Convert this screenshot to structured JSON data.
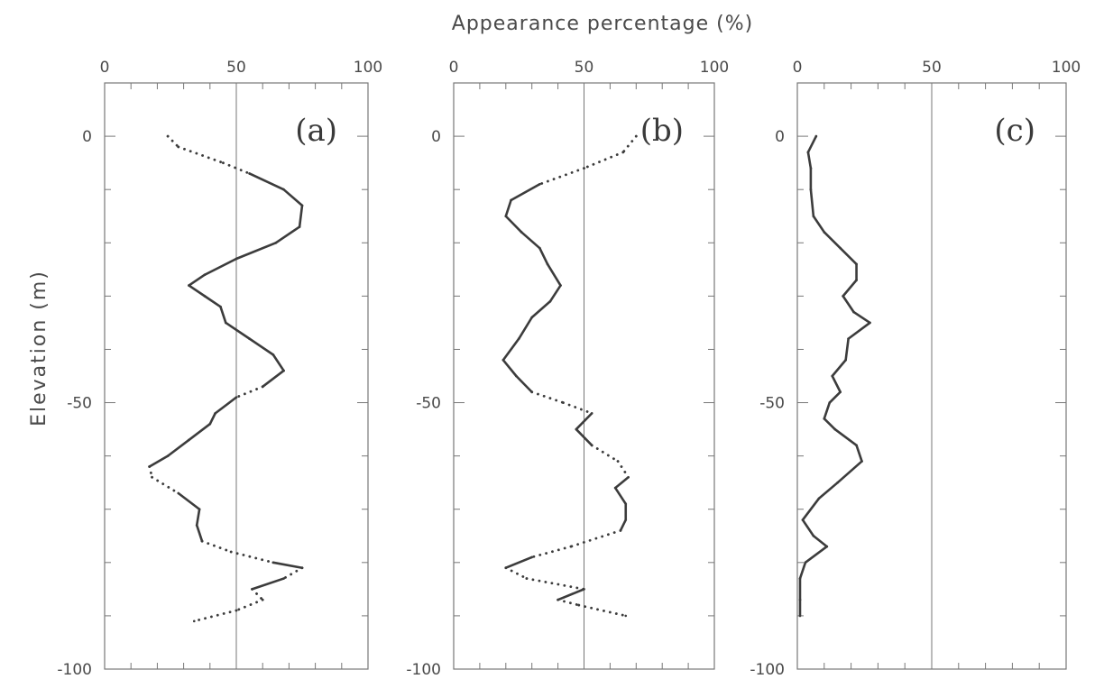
{
  "figure": {
    "top_label": "Appearance percentage (%)",
    "side_label": "Elevation (m)"
  },
  "colors": {
    "ink": "#3c3c3c",
    "frame": "#777777",
    "background": "#ffffff"
  },
  "chart_data": [
    {
      "type": "line",
      "panel_label": "(a)",
      "xlabel": "Appearance percentage (%)",
      "ylabel": "Elevation (m)",
      "xlim": [
        0,
        100
      ],
      "ylim": [
        -100,
        10
      ],
      "xticks": [
        0,
        50,
        100
      ],
      "yticks": [
        0,
        -50,
        -100
      ],
      "xtick_labels": [
        "0",
        "50",
        "100"
      ],
      "ytick_labels": [
        "0",
        "-50",
        "-100"
      ],
      "reference_line_x": 50,
      "series": [
        {
          "points": [
            {
              "y": 0,
              "x": 24,
              "style": "solid"
            },
            {
              "y": -2,
              "x": 28,
              "style": "dotted"
            },
            {
              "y": -5,
              "x": 45,
              "style": "dotted"
            },
            {
              "y": -7,
              "x": 55,
              "style": "dotted"
            },
            {
              "y": -10,
              "x": 68,
              "style": "solid"
            },
            {
              "y": -13,
              "x": 75,
              "style": "solid"
            },
            {
              "y": -17,
              "x": 74,
              "style": "solid"
            },
            {
              "y": -20,
              "x": 65,
              "style": "solid"
            },
            {
              "y": -23,
              "x": 50,
              "style": "solid"
            },
            {
              "y": -26,
              "x": 38,
              "style": "solid"
            },
            {
              "y": -28,
              "x": 32,
              "style": "solid"
            },
            {
              "y": -30,
              "x": 38,
              "style": "solid"
            },
            {
              "y": -32,
              "x": 44,
              "style": "solid"
            },
            {
              "y": -35,
              "x": 46,
              "style": "solid"
            },
            {
              "y": -38,
              "x": 55,
              "style": "solid"
            },
            {
              "y": -41,
              "x": 64,
              "style": "solid"
            },
            {
              "y": -44,
              "x": 68,
              "style": "solid"
            },
            {
              "y": -47,
              "x": 60,
              "style": "solid"
            },
            {
              "y": -49,
              "x": 50,
              "style": "dotted"
            },
            {
              "y": -52,
              "x": 42,
              "style": "solid"
            },
            {
              "y": -54,
              "x": 40,
              "style": "solid"
            },
            {
              "y": -57,
              "x": 32,
              "style": "solid"
            },
            {
              "y": -60,
              "x": 24,
              "style": "solid"
            },
            {
              "y": -62,
              "x": 17,
              "style": "solid"
            },
            {
              "y": -64,
              "x": 18,
              "style": "dotted"
            },
            {
              "y": -67,
              "x": 28,
              "style": "dotted"
            },
            {
              "y": -70,
              "x": 36,
              "style": "solid"
            },
            {
              "y": -73,
              "x": 35,
              "style": "solid"
            },
            {
              "y": -76,
              "x": 37,
              "style": "solid"
            },
            {
              "y": -78,
              "x": 48,
              "style": "dotted"
            },
            {
              "y": -80,
              "x": 64,
              "style": "dotted"
            },
            {
              "y": -81,
              "x": 75,
              "style": "solid"
            },
            {
              "y": -83,
              "x": 68,
              "style": "dotted"
            },
            {
              "y": -85,
              "x": 56,
              "style": "solid"
            },
            {
              "y": -87,
              "x": 60,
              "style": "dotted"
            },
            {
              "y": -89,
              "x": 50,
              "style": "dotted"
            },
            {
              "y": -91,
              "x": 34,
              "style": "dotted"
            }
          ]
        }
      ]
    },
    {
      "type": "line",
      "panel_label": "(b)",
      "xlabel": "Appearance percentage (%)",
      "ylabel": "Elevation (m)",
      "xlim": [
        0,
        100
      ],
      "ylim": [
        -100,
        10
      ],
      "xticks": [
        0,
        50,
        100
      ],
      "yticks": [
        0,
        -50,
        -100
      ],
      "xtick_labels": [
        "0",
        "50",
        "100"
      ],
      "ytick_labels": [
        "0",
        "-50",
        "-100"
      ],
      "reference_line_x": 50,
      "series": [
        {
          "points": [
            {
              "y": 0,
              "x": 70,
              "style": "solid"
            },
            {
              "y": -3,
              "x": 65,
              "style": "dotted"
            },
            {
              "y": -6,
              "x": 50,
              "style": "dotted"
            },
            {
              "y": -9,
              "x": 33,
              "style": "dotted"
            },
            {
              "y": -12,
              "x": 22,
              "style": "solid"
            },
            {
              "y": -15,
              "x": 20,
              "style": "solid"
            },
            {
              "y": -18,
              "x": 26,
              "style": "solid"
            },
            {
              "y": -21,
              "x": 33,
              "style": "solid"
            },
            {
              "y": -24,
              "x": 36,
              "style": "solid"
            },
            {
              "y": -28,
              "x": 41,
              "style": "solid"
            },
            {
              "y": -31,
              "x": 37,
              "style": "solid"
            },
            {
              "y": -34,
              "x": 30,
              "style": "solid"
            },
            {
              "y": -38,
              "x": 25,
              "style": "solid"
            },
            {
              "y": -42,
              "x": 19,
              "style": "solid"
            },
            {
              "y": -45,
              "x": 24,
              "style": "solid"
            },
            {
              "y": -48,
              "x": 30,
              "style": "solid"
            },
            {
              "y": -50,
              "x": 42,
              "style": "dotted"
            },
            {
              "y": -52,
              "x": 53,
              "style": "dotted"
            },
            {
              "y": -55,
              "x": 47,
              "style": "solid"
            },
            {
              "y": -58,
              "x": 53,
              "style": "solid"
            },
            {
              "y": -61,
              "x": 63,
              "style": "dotted"
            },
            {
              "y": -64,
              "x": 67,
              "style": "dotted"
            },
            {
              "y": -66,
              "x": 62,
              "style": "solid"
            },
            {
              "y": -69,
              "x": 66,
              "style": "solid"
            },
            {
              "y": -72,
              "x": 66,
              "style": "solid"
            },
            {
              "y": -74,
              "x": 64,
              "style": "solid"
            },
            {
              "y": -77,
              "x": 45,
              "style": "dotted"
            },
            {
              "y": -79,
              "x": 30,
              "style": "dotted"
            },
            {
              "y": -81,
              "x": 20,
              "style": "solid"
            },
            {
              "y": -83,
              "x": 28,
              "style": "dotted"
            },
            {
              "y": -85,
              "x": 50,
              "style": "dotted"
            },
            {
              "y": -87,
              "x": 40,
              "style": "solid"
            },
            {
              "y": -88,
              "x": 48,
              "style": "dotted"
            },
            {
              "y": -90,
              "x": 66,
              "style": "dotted"
            }
          ]
        }
      ]
    },
    {
      "type": "line",
      "panel_label": "(c)",
      "xlabel": "Appearance percentage (%)",
      "ylabel": "Elevation (m)",
      "xlim": [
        0,
        100
      ],
      "ylim": [
        -100,
        10
      ],
      "xticks": [
        0,
        50,
        100
      ],
      "yticks": [
        0,
        -50,
        -100
      ],
      "xtick_labels": [
        "0",
        "50",
        "100"
      ],
      "ytick_labels": [
        "0",
        "-50",
        "-100"
      ],
      "reference_line_x": 50,
      "series": [
        {
          "points": [
            {
              "y": 0,
              "x": 7,
              "style": "solid"
            },
            {
              "y": -3,
              "x": 4,
              "style": "solid"
            },
            {
              "y": -6,
              "x": 5,
              "style": "solid"
            },
            {
              "y": -10,
              "x": 5,
              "style": "solid"
            },
            {
              "y": -15,
              "x": 6,
              "style": "solid"
            },
            {
              "y": -18,
              "x": 10,
              "style": "solid"
            },
            {
              "y": -21,
              "x": 16,
              "style": "solid"
            },
            {
              "y": -24,
              "x": 22,
              "style": "solid"
            },
            {
              "y": -27,
              "x": 22,
              "style": "solid"
            },
            {
              "y": -30,
              "x": 17,
              "style": "solid"
            },
            {
              "y": -33,
              "x": 21,
              "style": "solid"
            },
            {
              "y": -35,
              "x": 27,
              "style": "solid"
            },
            {
              "y": -38,
              "x": 19,
              "style": "solid"
            },
            {
              "y": -42,
              "x": 18,
              "style": "solid"
            },
            {
              "y": -45,
              "x": 13,
              "style": "solid"
            },
            {
              "y": -48,
              "x": 16,
              "style": "solid"
            },
            {
              "y": -50,
              "x": 12,
              "style": "solid"
            },
            {
              "y": -53,
              "x": 10,
              "style": "solid"
            },
            {
              "y": -55,
              "x": 14,
              "style": "solid"
            },
            {
              "y": -58,
              "x": 22,
              "style": "solid"
            },
            {
              "y": -61,
              "x": 24,
              "style": "solid"
            },
            {
              "y": -65,
              "x": 15,
              "style": "solid"
            },
            {
              "y": -68,
              "x": 8,
              "style": "solid"
            },
            {
              "y": -72,
              "x": 2,
              "style": "solid"
            },
            {
              "y": -75,
              "x": 6,
              "style": "solid"
            },
            {
              "y": -77,
              "x": 11,
              "style": "solid"
            },
            {
              "y": -80,
              "x": 3,
              "style": "solid"
            },
            {
              "y": -83,
              "x": 1,
              "style": "solid"
            },
            {
              "y": -87,
              "x": 1,
              "style": "solid"
            },
            {
              "y": -90,
              "x": 1,
              "style": "solid"
            }
          ]
        }
      ]
    }
  ]
}
